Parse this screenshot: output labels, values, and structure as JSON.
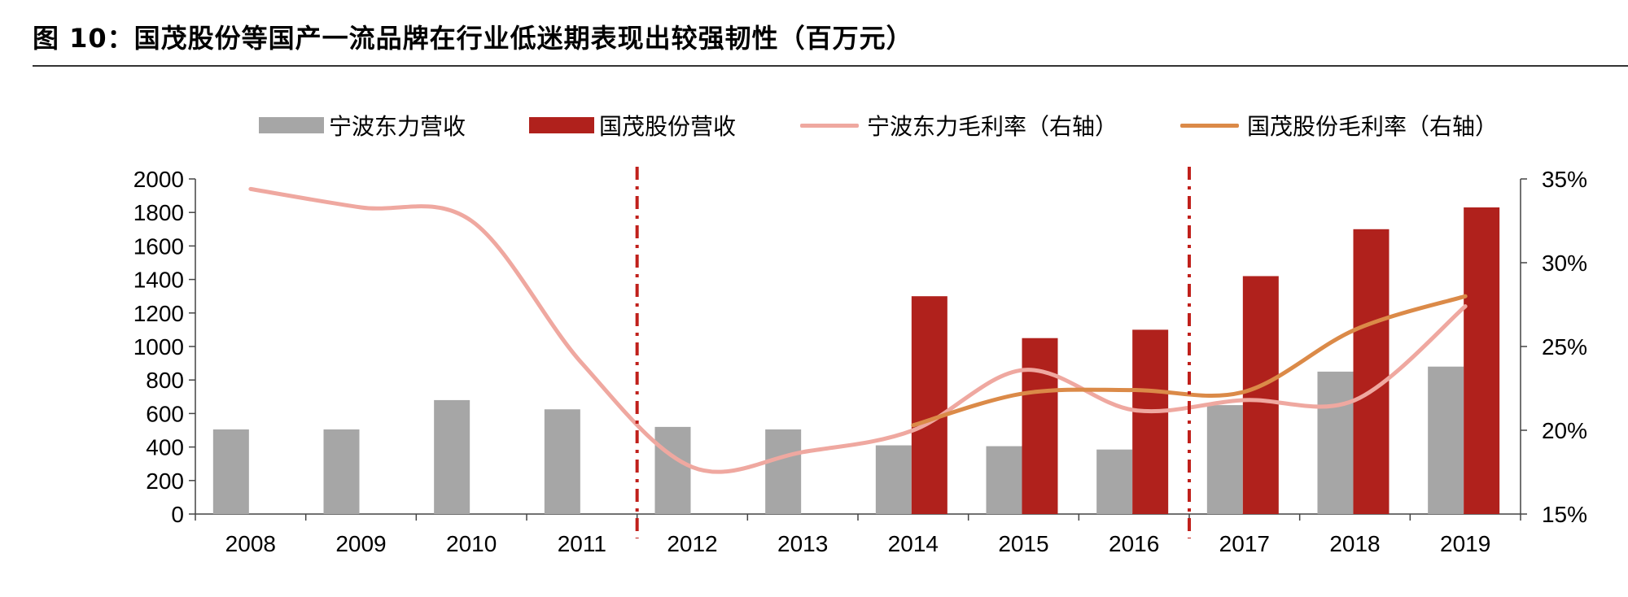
{
  "title": "图 10：国茂股份等国产一流品牌在行业低迷期表现出较强韧性（百万元）",
  "colors": {
    "ningbo_revenue": "#a6a6a6",
    "guomao_revenue": "#b0211c",
    "ningbo_margin": "#efa8a0",
    "guomao_margin": "#db8a48",
    "divider": "#c0201b"
  },
  "chart_data": {
    "type": "bar",
    "title": "图 10：国茂股份等国产一流品牌在行业低迷期表现出较强韧性（百万元）",
    "categories": [
      "2008",
      "2009",
      "2010",
      "2011",
      "2012",
      "2013",
      "2014",
      "2015",
      "2016",
      "2017",
      "2018",
      "2019"
    ],
    "y_left": {
      "ylim": [
        0,
        2000
      ],
      "ticks": [
        "0",
        "200",
        "400",
        "600",
        "800",
        "1000",
        "1200",
        "1400",
        "1600",
        "1800",
        "2000"
      ]
    },
    "y_right": {
      "ylim": [
        15,
        35
      ],
      "ticks": [
        "15%",
        "20%",
        "25%",
        "30%",
        "35%"
      ]
    },
    "series": [
      {
        "name": "宁波东力营收",
        "type": "bar",
        "axis": "left",
        "values": [
          505,
          505,
          680,
          625,
          520,
          505,
          410,
          405,
          385,
          650,
          850,
          880
        ]
      },
      {
        "name": "国茂股份营收",
        "type": "bar",
        "axis": "left",
        "values": [
          null,
          null,
          null,
          null,
          null,
          null,
          1300,
          1050,
          1100,
          1420,
          1700,
          1830
        ]
      },
      {
        "name": "宁波东力毛利率（右轴）",
        "type": "line",
        "axis": "right",
        "values": [
          34.4,
          33.3,
          32.5,
          24.0,
          17.8,
          18.7,
          20.0,
          23.6,
          21.2,
          21.8,
          21.8,
          27.4
        ]
      },
      {
        "name": "国茂股份毛利率（右轴）",
        "type": "line",
        "axis": "right",
        "values": [
          null,
          null,
          null,
          null,
          null,
          null,
          20.3,
          22.2,
          22.4,
          22.3,
          26.0,
          28.0
        ]
      }
    ],
    "dividers_after_category": [
      "2011",
      "2016"
    ],
    "grid": false,
    "legend": "top"
  }
}
